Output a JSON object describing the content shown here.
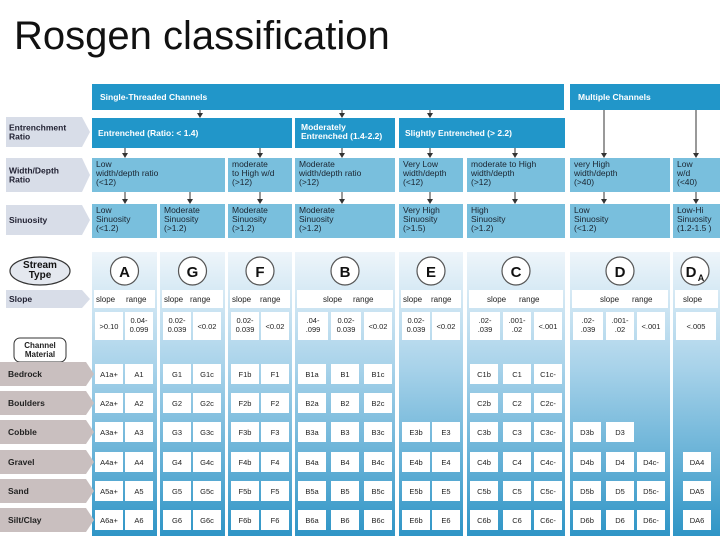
{
  "title": "Rosgen classification",
  "headers": {
    "single": "Single-Threaded Channels",
    "multiple": "Multiple Channels"
  },
  "row_labels": {
    "entrenchment": [
      "Entrenchment",
      "Ratio"
    ],
    "width_depth": [
      "Width/Depth",
      "Ratio"
    ],
    "sinuosity": "Sinuosity",
    "stream_type": [
      "Stream",
      "Type"
    ],
    "slope": "Slope",
    "channel_material": [
      "Channel",
      "Material"
    ]
  },
  "entrenchment": [
    {
      "text": [
        "Entrenched (Ratio: < 1.4)"
      ]
    },
    {
      "text": [
        "Moderately",
        "Entrenched (1.4-2.2)"
      ]
    },
    {
      "text": [
        "Slightly Entrenched (> 2.2)"
      ]
    }
  ],
  "width_depth": [
    [
      "Low",
      "width/depth ratio",
      "(<12)"
    ],
    [
      "moderate",
      "to High w/d",
      "(>12)"
    ],
    [
      "Moderate",
      "width/depth ratio",
      "(>12)"
    ],
    [
      "Very Low",
      "width/depth",
      "(<12)"
    ],
    [
      "moderate to High",
      "width/depth",
      "(>12)"
    ],
    [
      "very High",
      "width/depth",
      "(>40)"
    ],
    [
      "Low",
      "w/d",
      "(<40)"
    ]
  ],
  "sinuosity": [
    [
      "Low",
      "Sinuosity",
      "(<1.2)"
    ],
    [
      "Moderate",
      "Sinuosity",
      "(>1.2)"
    ],
    [
      "Moderate",
      "Sinuosity",
      "(>1.2)"
    ],
    [
      "Moderate",
      "Sinuosity",
      "(>1.2)"
    ],
    [
      "Very High",
      "Sinuosity",
      "(>1.5)"
    ],
    [
      "High",
      "Sinuosity",
      "(>1.2)"
    ],
    [
      "Low",
      "Sinuosity",
      "(<1.2)"
    ],
    [
      "Low-Hi",
      "Sinuosity",
      "(1.2-1.5 )"
    ]
  ],
  "stream_types": [
    {
      "letter": "A",
      "sub": ""
    },
    {
      "letter": "G",
      "sub": ""
    },
    {
      "letter": "F",
      "sub": ""
    },
    {
      "letter": "B",
      "sub": ""
    },
    {
      "letter": "E",
      "sub": ""
    },
    {
      "letter": "C",
      "sub": ""
    },
    {
      "letter": "D",
      "sub": ""
    },
    {
      "letter": "D",
      "sub": "A"
    }
  ],
  "slope_header": {
    "slope": "slope",
    "range": "range"
  },
  "slope_values": [
    [
      ">0.10",
      [
        "0.04-",
        "0.099"
      ]
    ],
    [
      [
        "0.02-",
        "0.039"
      ],
      "<0.02"
    ],
    [
      [
        "0.02-",
        "0.039"
      ],
      "<0.02"
    ],
    [
      ".04-",
      ".099"
    ],
    [
      [
        "0.02-",
        "0.039"
      ],
      "<0.02"
    ],
    [
      [
        "0.02-",
        "0.039"
      ],
      "<0.02"
    ],
    [
      ".02-",
      ".039"
    ],
    [
      ".001-",
      ".02"
    ],
    [
      "<.001"
    ],
    [
      ".02-",
      ".039"
    ],
    [
      ".001-",
      ".02"
    ],
    [
      "<.001"
    ],
    [
      "<.005"
    ]
  ],
  "materials": [
    "Bedrock",
    "Boulders",
    "Cobble",
    "Gravel",
    "Sand",
    "Silt/Clay"
  ],
  "type_codes": {
    "A": [
      [
        "A1a+",
        "A1"
      ],
      [
        "A2a+",
        "A2"
      ],
      [
        "A3a+",
        "A3"
      ],
      [
        "A4a+",
        "A4"
      ],
      [
        "A5a+",
        "A5"
      ],
      [
        "A6a+",
        "A6"
      ]
    ],
    "G": [
      [
        "G1",
        "G1c"
      ],
      [
        "G2",
        "G2c"
      ],
      [
        "G3",
        "G3c"
      ],
      [
        "G4",
        "G4c"
      ],
      [
        "G5",
        "G5c"
      ],
      [
        "G6",
        "G6c"
      ]
    ],
    "F": [
      [
        "F1b",
        "F1"
      ],
      [
        "F2b",
        "F2"
      ],
      [
        "F3b",
        "F3"
      ],
      [
        "F4b",
        "F4"
      ],
      [
        "F5b",
        "F5"
      ],
      [
        "F6b",
        "F6"
      ]
    ],
    "B": [
      [
        "B1a",
        "B1",
        "B1c"
      ],
      [
        "B2a",
        "B2",
        "B2c"
      ],
      [
        "B3a",
        "B3",
        "B3c"
      ],
      [
        "B4a",
        "B4",
        "B4c"
      ],
      [
        "B5a",
        "B5",
        "B5c"
      ],
      [
        "B6a",
        "B6",
        "B6c"
      ]
    ],
    "E": [
      [
        "",
        ""
      ],
      [
        "",
        ""
      ],
      [
        "E3b",
        "E3"
      ],
      [
        "E4b",
        "E4"
      ],
      [
        "E5b",
        "E5"
      ],
      [
        "E6b",
        "E6"
      ]
    ],
    "C": [
      [
        "C1b",
        "C1",
        "C1c-"
      ],
      [
        "C2b",
        "C2",
        "C2c-"
      ],
      [
        "C3b",
        "C3",
        "C3c-"
      ],
      [
        "C4b",
        "C4",
        "C4c-"
      ],
      [
        "C5b",
        "C5",
        "C5c-"
      ],
      [
        "C6b",
        "C6",
        "C6c-"
      ]
    ],
    "D": [
      [
        "",
        "",
        ""
      ],
      [
        "",
        "",
        ""
      ],
      [
        "D3b",
        "D3",
        ""
      ],
      [
        "D4b",
        "D4",
        "D4c-"
      ],
      [
        "D5b",
        "D5",
        "D5c-"
      ],
      [
        "D6b",
        "D6",
        "D6c-"
      ]
    ],
    "DA": [
      [
        ""
      ],
      [
        ""
      ],
      [
        ""
      ],
      [
        "DA4"
      ],
      [
        "DA5"
      ],
      [
        "DA6"
      ]
    ]
  },
  "colors": {
    "band": "#2196c9",
    "band_light": "#79bfdd",
    "label_bg": "#d8dde8",
    "column_bg": "#d2e6f2",
    "material_bg": "#c9bfbf"
  }
}
